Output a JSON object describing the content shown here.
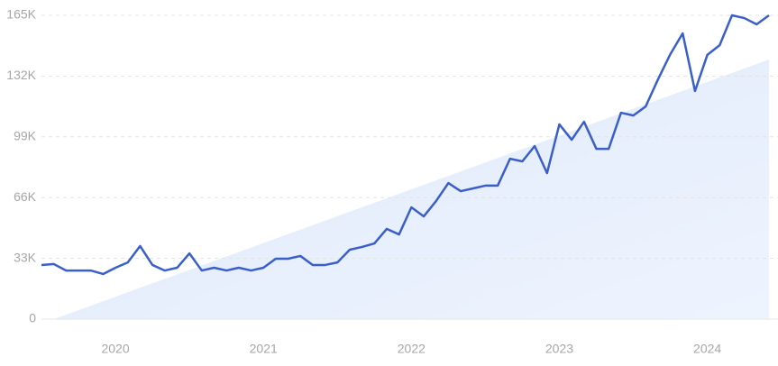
{
  "chart_data": {
    "type": "line",
    "categories": [
      null,
      null,
      null,
      null,
      null,
      null,
      "2020",
      null,
      null,
      null,
      null,
      null,
      null,
      null,
      null,
      null,
      null,
      null,
      "2021",
      null,
      null,
      null,
      null,
      null,
      null,
      null,
      null,
      null,
      null,
      null,
      "2022",
      null,
      null,
      null,
      null,
      null,
      null,
      null,
      null,
      null,
      null,
      null,
      "2023",
      null,
      null,
      null,
      null,
      null,
      null,
      null,
      null,
      null,
      null,
      null,
      "2024",
      null,
      null,
      null,
      null,
      null
    ],
    "values": [
      29400,
      29900,
      26400,
      26400,
      26400,
      24500,
      27900,
      30800,
      39700,
      29400,
      26400,
      27900,
      35700,
      26400,
      27900,
      26400,
      27900,
      26400,
      27900,
      32800,
      32800,
      34300,
      29400,
      29400,
      30800,
      37700,
      39200,
      41100,
      49000,
      46000,
      60700,
      55800,
      64100,
      73900,
      69500,
      71000,
      72500,
      72500,
      87100,
      85700,
      94000,
      79300,
      105800,
      97400,
      107200,
      92500,
      92500,
      112100,
      110600,
      115500,
      130200,
      143900,
      155200,
      123900,
      143500,
      148800,
      165000,
      163500,
      160100,
      165000
    ],
    "color": "#3a5fc8",
    "trend": {
      "values": [
        null,
        0,
        null,
        null,
        null,
        null,
        null,
        null,
        null,
        null,
        null,
        null,
        null,
        null,
        null,
        null,
        null,
        null,
        null,
        null,
        null,
        null,
        null,
        null,
        null,
        null,
        null,
        null,
        null,
        null,
        null,
        null,
        null,
        null,
        null,
        null,
        null,
        null,
        null,
        null,
        null,
        null,
        null,
        null,
        null,
        null,
        null,
        null,
        null,
        null,
        null,
        null,
        null,
        null,
        null,
        null,
        null,
        null,
        null,
        141000
      ],
      "color": "#e3edfc"
    },
    "ylim": [
      0,
      165000
    ],
    "yticks": [
      0,
      {
        "value": 33000,
        "label": "33K"
      },
      {
        "value": 66000,
        "label": "66K"
      },
      {
        "value": 99000,
        "label": "99K"
      },
      {
        "value": 132000,
        "label": "132K"
      },
      {
        "value": 165000,
        "label": "165K"
      }
    ],
    "grid": true
  }
}
